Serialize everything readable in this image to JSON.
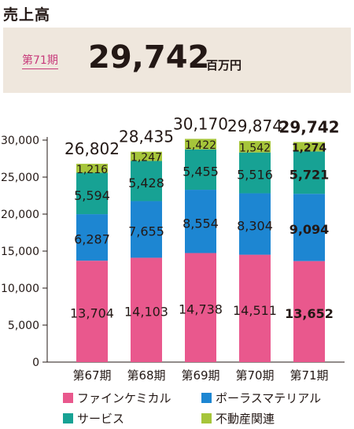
{
  "header": {
    "title": "売上高",
    "period_label": "第71期",
    "value": "29,742",
    "unit": "百万円"
  },
  "colors": {
    "fine_chemical": "#e9588d",
    "porous_material": "#1d86d2",
    "service": "#17a294",
    "real_estate": "#a6c53a",
    "highlight_bg": "#efe7dd"
  },
  "chart_data": {
    "type": "bar",
    "stacked": true,
    "categories": [
      "第67期",
      "第68期",
      "第69期",
      "第70期",
      "第71期"
    ],
    "series": [
      {
        "name": "ファインケミカル",
        "values": [
          13704,
          14103,
          14738,
          14511,
          13652
        ],
        "labels": [
          "13,704",
          "14,103",
          "14,738",
          "14,511",
          "13,652"
        ]
      },
      {
        "name": "ポーラスマテリアル",
        "values": [
          6287,
          7655,
          8554,
          8304,
          9094
        ],
        "labels": [
          "6,287",
          "7,655",
          "8,554",
          "8,304",
          "9,094"
        ]
      },
      {
        "name": "サービス",
        "values": [
          5594,
          5428,
          5455,
          5516,
          5721
        ],
        "labels": [
          "5,594",
          "5,428",
          "5,455",
          "5,516",
          "5,721"
        ]
      },
      {
        "name": "不動産関連",
        "values": [
          1216,
          1247,
          1422,
          1542,
          1274
        ],
        "labels": [
          "1,216",
          "1,247",
          "1,422",
          "1,542",
          "1,274"
        ]
      }
    ],
    "totals": [
      26802,
      28435,
      30170,
      29874,
      29742
    ],
    "total_labels": [
      "26,802",
      "28,435",
      "30,170",
      "29,874",
      "29,742"
    ],
    "highlight_index": 4,
    "ylim": [
      0,
      30000
    ],
    "yticks": [
      0,
      5000,
      10000,
      15000,
      20000,
      25000,
      30000
    ],
    "ytick_labels": [
      "0",
      "5,000",
      "10,000",
      "15,000",
      "20,000",
      "25,000",
      "30,000"
    ],
    "legend_position": "bottom"
  }
}
